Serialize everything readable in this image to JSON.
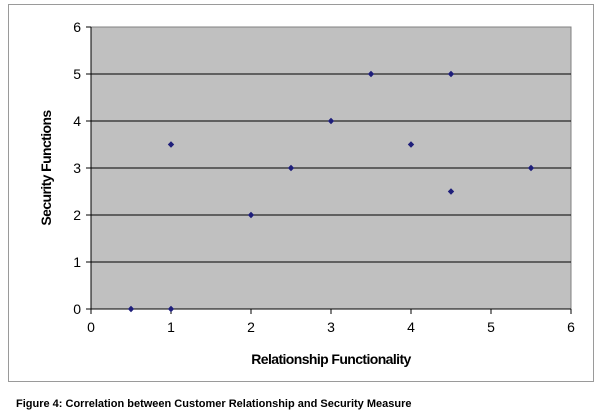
{
  "caption": "Figure 4:  Correlation between Customer Relationship and Security Measure",
  "chart_data": {
    "type": "scatter",
    "title": "",
    "xlabel": "Relationship Functionality",
    "ylabel": "Security Functions",
    "xlim": [
      0,
      6
    ],
    "ylim": [
      0,
      6
    ],
    "x_ticks": [
      0,
      1,
      2,
      3,
      4,
      5,
      6
    ],
    "y_ticks": [
      0,
      1,
      2,
      3,
      4,
      5,
      6
    ],
    "grid": "horizontal",
    "legend": "none",
    "plot_background": "#c0c0c0",
    "marker_color": "#1f1f7a",
    "points": [
      {
        "x": 0.5,
        "y": 0
      },
      {
        "x": 1,
        "y": 0
      },
      {
        "x": 1,
        "y": 3.5
      },
      {
        "x": 2,
        "y": 2
      },
      {
        "x": 2.5,
        "y": 3
      },
      {
        "x": 3,
        "y": 4
      },
      {
        "x": 3.5,
        "y": 5
      },
      {
        "x": 4,
        "y": 3.5
      },
      {
        "x": 4.5,
        "y": 5
      },
      {
        "x": 4.5,
        "y": 2.5
      },
      {
        "x": 5.5,
        "y": 3
      }
    ]
  }
}
